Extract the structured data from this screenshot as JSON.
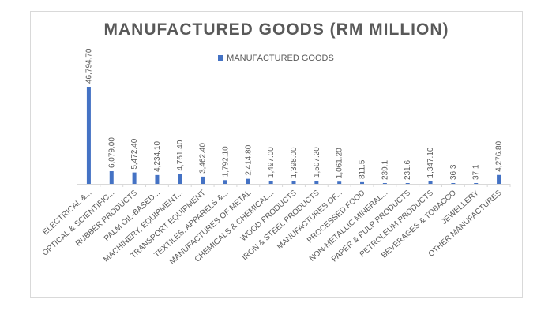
{
  "chart_data": {
    "type": "bar",
    "title": "MANUFACTURED GOODS (RM MILLION)",
    "legend_position": "top",
    "series": [
      {
        "name": "MANUFACTURED GOODS",
        "color": "#4472c4",
        "values": [
          46794.7,
          6079.0,
          5472.4,
          4234.1,
          4761.4,
          3462.4,
          1792.1,
          2414.8,
          1497.0,
          1398.0,
          1507.2,
          1061.2,
          811.5,
          239.1,
          231.6,
          1347.1,
          36.3,
          37.1,
          4276.8
        ],
        "value_labels": [
          "46,794.70",
          "6,079.00",
          "5,472.40",
          "4,234.10",
          "4,761.40",
          "3,462.40",
          "1,792.10",
          "2,414.80",
          "1,497.00",
          "1,398.00",
          "1,507.20",
          "1,061.20",
          "811.5",
          "239.1",
          "231.6",
          "1,347.10",
          "36.3",
          "37.1",
          "4,276.80"
        ]
      }
    ],
    "categories": [
      "ELECTRICAL &...",
      "OPTICAL & SCIENTIFIC...",
      "RUBBER PRODUCTS",
      "PALM OIL-BASED...",
      "MACHINERY, EQUIPMENT...",
      "TRANSPORT EQUIPMENT",
      "TEXTILES, APPARELS &...",
      "MANUFACTURES OF METAL",
      "CHEMICALS & CHEMICAL...",
      "WOOD PRODUCTS",
      "IRON & STEEL PRODUCTS",
      "MANUFACTURES OF...",
      "PROCESSED FOOD",
      "NON-METALLIC MINERAL...",
      "PAPER & PULP PRODUCTS",
      "PETROLEUM PRODUCTS",
      "BEVERAGES & TOBACCO",
      "JEWELLERY",
      "OTHER MANUFACTURES"
    ],
    "ylim": [
      0,
      50000
    ],
    "grid": false,
    "xlabel": "",
    "ylabel": ""
  }
}
